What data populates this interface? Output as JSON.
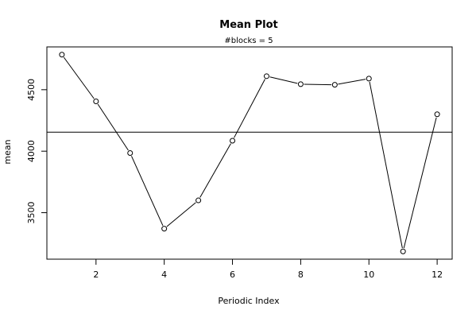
{
  "chart_data": {
    "type": "line",
    "title": "Mean Plot",
    "subtitle": "#blocks =  5",
    "xlabel": "Periodic Index",
    "ylabel": "mean",
    "x": [
      1,
      2,
      3,
      4,
      5,
      6,
      7,
      8,
      9,
      10,
      11,
      12
    ],
    "values": [
      4785,
      4405,
      3985,
      3370,
      3600,
      4085,
      4610,
      4545,
      4540,
      4590,
      3185,
      4300
    ],
    "hline": 4155,
    "x_ticks": [
      2,
      4,
      6,
      8,
      10,
      12
    ],
    "y_ticks": [
      3500,
      4000,
      4500
    ],
    "xlim": [
      0.56,
      12.44
    ],
    "ylim": [
      3122,
      4848
    ],
    "grid": false,
    "marker": "open-circle",
    "line_color": "#000000"
  }
}
